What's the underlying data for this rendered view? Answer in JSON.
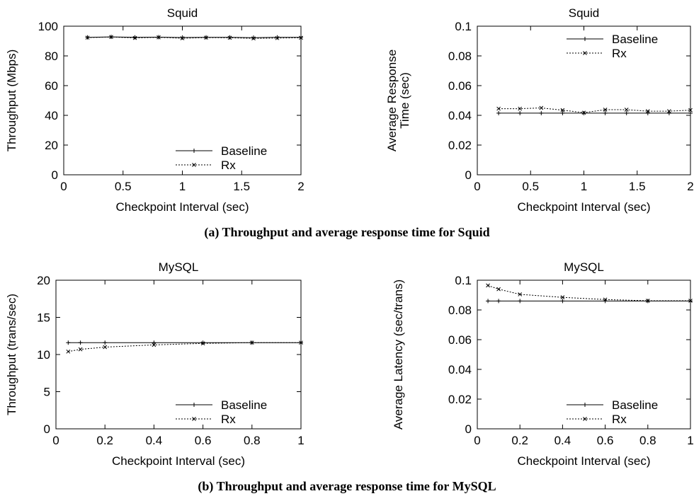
{
  "captions": {
    "a": "(a) Throughput and average response time for Squid",
    "b": "(b) Throughput and average response time for MySQL"
  },
  "chart_data": [
    {
      "type": "line",
      "title": "Squid",
      "xlabel": "Checkpoint Interval (sec)",
      "ylabel": "Throughput (Mbps)",
      "xlim": [
        0,
        2
      ],
      "ylim": [
        0,
        100
      ],
      "xticks": [
        "0",
        "0.5",
        "1",
        "1.5",
        "2"
      ],
      "yticks": [
        "0",
        "20",
        "40",
        "60",
        "80",
        "100"
      ],
      "legend_position": "bottom-right",
      "series": [
        {
          "name": "Baseline",
          "style": "solid",
          "marker": "plus",
          "x": [
            0.2,
            0.4,
            0.6,
            0.8,
            1.0,
            1.2,
            1.4,
            1.6,
            1.8,
            2.0
          ],
          "y": [
            92.5,
            92.8,
            92.5,
            92.6,
            92.4,
            92.5,
            92.5,
            92.3,
            92.5,
            92.5
          ]
        },
        {
          "name": "Rx",
          "style": "dotted",
          "marker": "cross",
          "x": [
            0.2,
            0.4,
            0.6,
            0.8,
            1.0,
            1.2,
            1.4,
            1.6,
            1.8,
            2.0
          ],
          "y": [
            92.3,
            92.7,
            92.1,
            92.5,
            91.9,
            92.3,
            92.2,
            91.8,
            92.0,
            92.2
          ]
        }
      ]
    },
    {
      "type": "line",
      "title": "Squid",
      "xlabel": "Checkpoint Interval (sec)",
      "ylabel": "Average Response\nTime (sec)",
      "xlim": [
        0,
        2
      ],
      "ylim": [
        0,
        0.1
      ],
      "xticks": [
        "0",
        "0.5",
        "1",
        "1.5",
        "2"
      ],
      "yticks": [
        "0",
        "0.02",
        "0.04",
        "0.06",
        "0.08",
        "0.1"
      ],
      "legend_position": "top-right",
      "series": [
        {
          "name": "Baseline",
          "style": "solid",
          "marker": "plus",
          "x": [
            0.2,
            0.4,
            0.6,
            0.8,
            1.0,
            1.2,
            1.4,
            1.6,
            1.8,
            2.0
          ],
          "y": [
            0.0415,
            0.0415,
            0.0415,
            0.0415,
            0.0415,
            0.0415,
            0.0415,
            0.0415,
            0.0415,
            0.0415
          ]
        },
        {
          "name": "Rx",
          "style": "dotted",
          "marker": "cross",
          "x": [
            0.2,
            0.4,
            0.6,
            0.8,
            1.0,
            1.2,
            1.4,
            1.6,
            1.8,
            2.0
          ],
          "y": [
            0.0445,
            0.0445,
            0.045,
            0.0435,
            0.0418,
            0.0438,
            0.0438,
            0.0428,
            0.0428,
            0.0435
          ]
        }
      ]
    },
    {
      "type": "line",
      "title": "MySQL",
      "xlabel": "Checkpoint Interval (sec)",
      "ylabel": "Throughput (trans/sec)",
      "xlim": [
        0,
        1
      ],
      "ylim": [
        0,
        20
      ],
      "xticks": [
        "0",
        "0.2",
        "0.4",
        "0.6",
        "0.8",
        "1"
      ],
      "yticks": [
        "0",
        "5",
        "10",
        "15",
        "20"
      ],
      "legend_position": "bottom-right",
      "series": [
        {
          "name": "Baseline",
          "style": "solid",
          "marker": "plus",
          "x": [
            0.05,
            0.1,
            0.2,
            0.4,
            0.6,
            0.8,
            1.0
          ],
          "y": [
            11.6,
            11.6,
            11.6,
            11.6,
            11.6,
            11.6,
            11.6
          ]
        },
        {
          "name": "Rx",
          "style": "dotted",
          "marker": "cross",
          "x": [
            0.05,
            0.1,
            0.2,
            0.4,
            0.6,
            0.8,
            1.0
          ],
          "y": [
            10.4,
            10.7,
            11.0,
            11.3,
            11.5,
            11.6,
            11.6
          ]
        }
      ]
    },
    {
      "type": "line",
      "title": "MySQL",
      "xlabel": "Checkpoint Interval (sec)",
      "ylabel": "Average Latency (sec/trans)",
      "xlim": [
        0,
        1
      ],
      "ylim": [
        0,
        0.1
      ],
      "xticks": [
        "0",
        "0.2",
        "0.4",
        "0.6",
        "0.8",
        "1"
      ],
      "yticks": [
        "0",
        "0.02",
        "0.04",
        "0.06",
        "0.08",
        "0.1"
      ],
      "legend_position": "bottom-right",
      "series": [
        {
          "name": "Baseline",
          "style": "solid",
          "marker": "plus",
          "x": [
            0.05,
            0.1,
            0.2,
            0.4,
            0.6,
            0.8,
            1.0
          ],
          "y": [
            0.086,
            0.086,
            0.086,
            0.086,
            0.086,
            0.086,
            0.086
          ]
        },
        {
          "name": "Rx",
          "style": "dotted",
          "marker": "cross",
          "x": [
            0.05,
            0.1,
            0.2,
            0.4,
            0.6,
            0.8,
            1.0
          ],
          "y": [
            0.0965,
            0.094,
            0.0905,
            0.0885,
            0.087,
            0.0862,
            0.0862
          ]
        }
      ]
    }
  ]
}
